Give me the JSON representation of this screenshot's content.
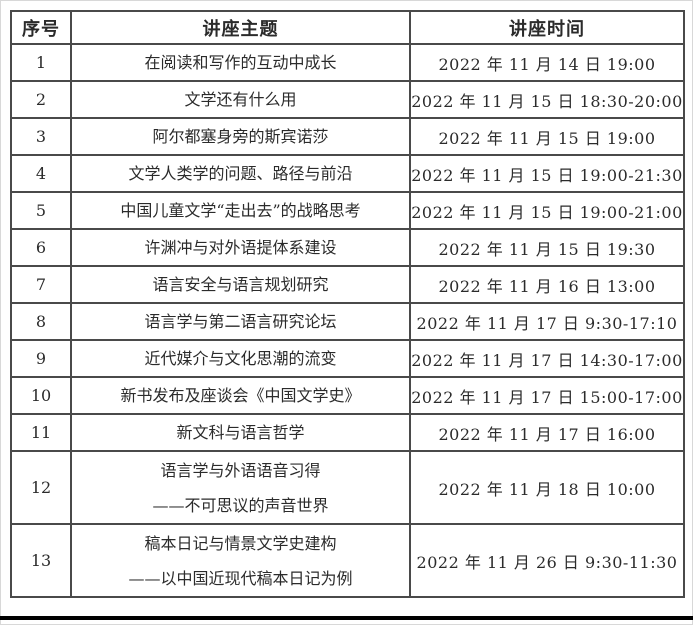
{
  "page": {
    "background_color": "#ffffff",
    "border_color": "#4a4a4a",
    "text_color": "#2b2b2b",
    "bottom_rule_color": "#000000"
  },
  "table": {
    "headers": {
      "no": "序号",
      "topic": "讲座主题",
      "time": "讲座时间"
    },
    "rows": [
      {
        "no": "1",
        "topic": [
          "在阅读和写作的互动中成长"
        ],
        "time": "2022 年 11 月 14 日 19:00"
      },
      {
        "no": "2",
        "topic": [
          "文学还有什么用"
        ],
        "time": "2022 年 11 月 15 日 18:30-20:00"
      },
      {
        "no": "3",
        "topic": [
          "阿尔都塞身旁的斯宾诺莎"
        ],
        "time": "2022 年 11 月 15 日 19:00"
      },
      {
        "no": "4",
        "topic": [
          "文学人类学的问题、路径与前沿"
        ],
        "time": "2022 年 11 月 15 日 19:00-21:30"
      },
      {
        "no": "5",
        "topic": [
          "中国儿童文学“走出去”的战略思考"
        ],
        "time": "2022 年 11 月 15 日 19:00-21:00"
      },
      {
        "no": "6",
        "topic": [
          "许渊冲与对外语提体系建设"
        ],
        "time": "2022 年 11 月 15 日 19:30"
      },
      {
        "no": "7",
        "topic": [
          "语言安全与语言规划研究"
        ],
        "time": "2022 年 11 月 16 日 13:00"
      },
      {
        "no": "8",
        "topic": [
          "语言学与第二语言研究论坛"
        ],
        "time": "2022 年 11 月 17 日 9:30-17:10"
      },
      {
        "no": "9",
        "topic": [
          "近代媒介与文化思潮的流变"
        ],
        "time": "2022 年 11 月 17 日 14:30-17:00"
      },
      {
        "no": "10",
        "topic": [
          "新书发布及座谈会《中国文学史》"
        ],
        "time": "2022 年 11 月 17 日 15:00-17:00"
      },
      {
        "no": "11",
        "topic": [
          "新文科与语言哲学"
        ],
        "time": "2022 年 11 月 17 日 16:00"
      },
      {
        "no": "12",
        "topic": [
          "语言学与外语语音习得",
          "——不可思议的声音世界"
        ],
        "time": "2022 年 11 月 18 日 10:00"
      },
      {
        "no": "13",
        "topic": [
          "稿本日记与情景文学史建构",
          "——以中国近现代稿本日记为例"
        ],
        "time": "2022 年 11 月 26 日 9:30-11:30"
      }
    ]
  }
}
